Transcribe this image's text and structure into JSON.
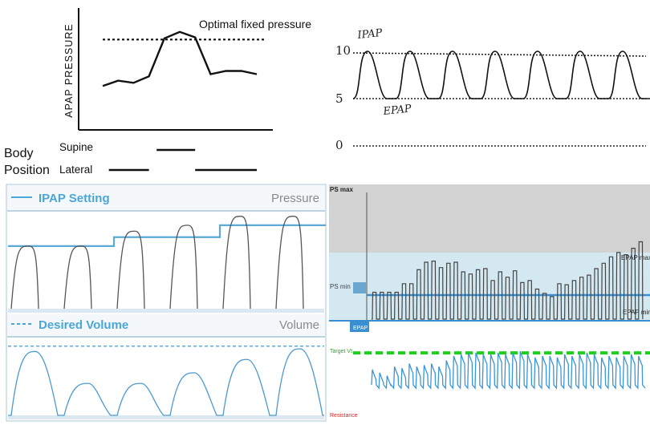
{
  "colors": {
    "ink": "#111111",
    "panel_blue": "#5aa9d6",
    "panel_border": "#a8c4d8",
    "pressure_wave": "#555555",
    "volume_wave": "#4b9ad0",
    "grey_zone": "#cfcfcf",
    "blue_zone": "#cfe6f0",
    "line_blue": "#3a8fd0",
    "target_green": "#22cc22",
    "resistance_red": "#dd2222"
  },
  "chart_data": [
    {
      "type": "line",
      "id": "apap",
      "title": "",
      "ylabel": "APAP PRESSURE",
      "xlabel": "",
      "reference_label": "Optimal fixed pressure",
      "reference_value": 8.2,
      "ylim": [
        0,
        10
      ],
      "x": [
        0,
        1,
        2,
        3,
        4,
        5,
        6,
        7,
        8,
        9,
        10
      ],
      "values": [
        3.9,
        4.4,
        4.2,
        4.8,
        8.3,
        8.9,
        8.4,
        5.0,
        5.3,
        5.3,
        5.0
      ],
      "body_position_title": "Body Position",
      "body_position_title_lines": [
        "Body",
        "Position"
      ],
      "positions": [
        {
          "name": "Supine",
          "segments": [
            [
              3.5,
              6.0
            ]
          ]
        },
        {
          "name": "Lateral",
          "segments": [
            [
              0.4,
              3.0
            ],
            [
              6.0,
              10.0
            ]
          ]
        }
      ]
    },
    {
      "type": "line",
      "id": "ipap_epap",
      "ylim": [
        0,
        10
      ],
      "yticks": [
        "10",
        "5",
        "0"
      ],
      "ytick_values": [
        10,
        5,
        0
      ],
      "annotations": [
        "IPAP",
        "EPAP"
      ],
      "reference_lines": [
        10,
        5,
        0
      ],
      "cycles": 7,
      "high": 10,
      "low": 5
    },
    {
      "type": "line",
      "id": "pressure_volume",
      "panels": [
        {
          "name": "pressure",
          "legend": "IPAP Setting",
          "right_label": "Pressure",
          "steps": [
            4.2,
            4.2,
            4.8,
            4.8,
            5.6,
            5.6
          ],
          "peaks": [
            4.2,
            4.2,
            5.2,
            5.6,
            6.2,
            6.2
          ]
        },
        {
          "name": "volume",
          "legend": "Desired Volume",
          "right_label": "Volume",
          "target": 5.2,
          "peaks": [
            4.8,
            2.4,
            2.4,
            3.2,
            4.2,
            5.0
          ]
        }
      ]
    },
    {
      "type": "line",
      "id": "avaps",
      "labels": {
        "ps_max": "PS max",
        "ps_min": "PS min",
        "epap": "EPAP",
        "epap_max": "EPAP max",
        "epap_min": "EPAP min",
        "target_vt": "Target Vt",
        "resistance": "Resistance"
      },
      "pressure_heights": [
        2.5,
        2.5,
        2.5,
        2.5,
        3.3,
        3.3,
        4.6,
        5.3,
        5.4,
        4.8,
        5.2,
        5.3,
        4.4,
        4.2,
        4.6,
        4.7,
        3.6,
        4.4,
        3.9,
        4.5,
        3.4,
        3.6,
        2.8,
        2.4,
        2.1,
        3.3,
        3.2,
        3.6,
        3.9,
        4.1,
        4.7,
        5.2,
        5.8,
        6.2,
        6.0,
        6.6,
        7.2
      ],
      "flow_heights": [
        1.0,
        0.8,
        0.6,
        1.2,
        1.1,
        1.4,
        1.2,
        1.3,
        1.4,
        1.2,
        1.6,
        1.9,
        2.0,
        2.1,
        2.1,
        2.0,
        2.0,
        2.1,
        2.0,
        2.1,
        2.2,
        2.0,
        1.8,
        1.9,
        1.9,
        1.8,
        2.0,
        1.9,
        2.0,
        2.1,
        2.0,
        1.8,
        1.9,
        1.8,
        1.9,
        2.0,
        1.9
      ],
      "target_vt": 2.1
    }
  ]
}
